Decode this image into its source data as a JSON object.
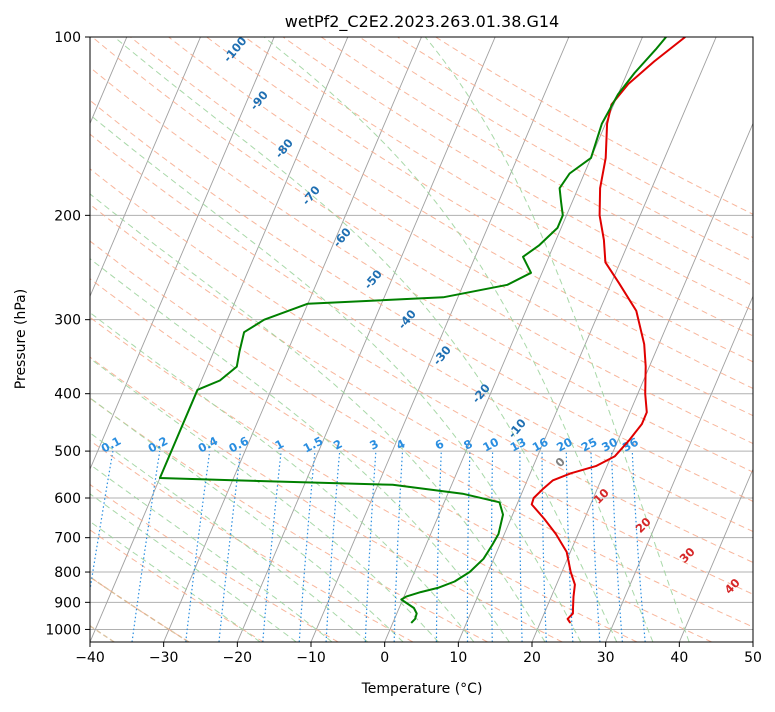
{
  "chart_data": {
    "type": "line",
    "title": "wetPf2_C2E2.2023.263.01.38.G14",
    "xlabel": "Temperature (°C)",
    "ylabel": "Pressure (hPa)",
    "xlim": [
      -40,
      50
    ],
    "ylim": [
      1050,
      100
    ],
    "y_scale": "log",
    "x_ticks": [
      -40,
      -30,
      -20,
      -10,
      0,
      10,
      20,
      30,
      40,
      50
    ],
    "y_ticks": [
      100,
      200,
      300,
      400,
      500,
      600,
      700,
      800,
      900,
      1000
    ],
    "grid": true,
    "series": [
      {
        "color": "#e00000",
        "points": [
          [
            24.1,
            975
          ],
          [
            23.5,
            960
          ],
          [
            23.9,
            940
          ],
          [
            23.6,
            920
          ],
          [
            23.0,
            880
          ],
          [
            22.5,
            840
          ],
          [
            21.2,
            800
          ],
          [
            19.5,
            740
          ],
          [
            17.0,
            690
          ],
          [
            14.5,
            650
          ],
          [
            12.0,
            615
          ],
          [
            11.9,
            600
          ],
          [
            12.6,
            580
          ],
          [
            13.5,
            560
          ],
          [
            15.5,
            545
          ],
          [
            18.5,
            530
          ],
          [
            20.5,
            510
          ],
          [
            21.5,
            480
          ],
          [
            22.3,
            450
          ],
          [
            22.3,
            430
          ],
          [
            21.0,
            400
          ],
          [
            19.5,
            360
          ],
          [
            18.0,
            330
          ],
          [
            15.0,
            290
          ],
          [
            11.0,
            260
          ],
          [
            8.0,
            240
          ],
          [
            6.5,
            220
          ],
          [
            4.5,
            200
          ],
          [
            3.0,
            180
          ],
          [
            2.0,
            160
          ],
          [
            0.2,
            140
          ],
          [
            -0.3,
            130
          ],
          [
            0.8,
            120
          ],
          [
            3.0,
            110
          ],
          [
            5.8,
            100
          ]
        ]
      },
      {
        "color": "#008000",
        "points": [
          [
            2.5,
            975
          ],
          [
            2.8,
            960
          ],
          [
            2.7,
            940
          ],
          [
            2.0,
            920
          ],
          [
            -0.2,
            890
          ],
          [
            0.3,
            880
          ],
          [
            2.0,
            865
          ],
          [
            4.2,
            850
          ],
          [
            6.0,
            830
          ],
          [
            7.5,
            800
          ],
          [
            8.6,
            760
          ],
          [
            9.0,
            720
          ],
          [
            9.2,
            690
          ],
          [
            8.7,
            640
          ],
          [
            7.5,
            610
          ],
          [
            2.0,
            590
          ],
          [
            -8.0,
            570
          ],
          [
            -30.0,
            560
          ],
          [
            -40.0,
            555
          ],
          [
            -40.0,
            394
          ],
          [
            -37.5,
            380
          ],
          [
            -36.0,
            360
          ],
          [
            -36.5,
            340
          ],
          [
            -37.0,
            315
          ],
          [
            -35.0,
            300
          ],
          [
            -30.0,
            282
          ],
          [
            -12.0,
            275
          ],
          [
            -4.0,
            262
          ],
          [
            -1.5,
            250
          ],
          [
            -3.5,
            235
          ],
          [
            -2.0,
            225
          ],
          [
            -0.5,
            210
          ],
          [
            -0.5,
            200
          ],
          [
            -1.5,
            190
          ],
          [
            -2.5,
            180
          ],
          [
            -2.0,
            170
          ],
          [
            0.0,
            160
          ],
          [
            -0.5,
            140
          ],
          [
            0.0,
            125
          ],
          [
            1.0,
            115
          ],
          [
            2.5,
            105
          ],
          [
            3.2,
            100
          ]
        ]
      }
    ],
    "dry_adiabat_labels": [
      "-100",
      "-90",
      "-80",
      "-70",
      "-60",
      "-50",
      "-40",
      "-30",
      "-20",
      "-10"
    ],
    "mixing_ratio_labels": [
      "0.1",
      "0.2",
      "0.4",
      "0.6",
      "1",
      "1.5",
      "2",
      "3",
      "4",
      "6",
      "8",
      "10",
      "13",
      "16",
      "20",
      "25",
      "30",
      "36"
    ],
    "moist_adiabat_labels": [
      "0",
      "10",
      "20",
      "30",
      "40"
    ],
    "colors": {
      "temperature": "#e00000",
      "dewpoint": "#008000",
      "isotherm": "#a0a0a0",
      "dry_adiabat": "#f7a98b",
      "moist_adiabat": "#9fd49f",
      "mixing_ratio": "#2a8ee0",
      "label_blue": "#1f6fb2",
      "label_bright_blue": "#2a8ee0",
      "label_red": "#d62728",
      "label_gray": "#808080",
      "label_tan": "#d2b48c"
    }
  }
}
